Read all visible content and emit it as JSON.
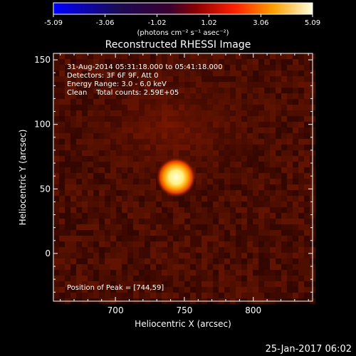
{
  "colorbar": {
    "ticks": [
      "-5.09",
      "-3.06",
      "-1.02",
      "1.02",
      "3.06",
      "5.09"
    ],
    "min": -5.09,
    "max": 5.09,
    "units_label": "(photons cm⁻² s⁻¹ asec⁻²)"
  },
  "chart_data": {
    "type": "heatmap",
    "title": "Reconstructed RHESSI Image",
    "xlabel": "Heliocentric X (arcsec)",
    "ylabel": "Heliocentric Y (arcsec)",
    "xlim": [
      655,
      843
    ],
    "ylim": [
      -37,
      155
    ],
    "xticks": [
      "700",
      "750",
      "800"
    ],
    "yticks": [
      "0",
      "50",
      "100",
      "150"
    ],
    "xtick_values": [
      700,
      750,
      800
    ],
    "ytick_values": [
      0,
      50,
      100,
      150
    ],
    "peak": {
      "x": 744,
      "y": 59
    },
    "info_lines": [
      "31-Aug-2014 05:31:18.000 to 05:41:18.000",
      "Detectors: 3F 6F 9F, Att 0",
      "Energy Range: 3.0 - 6.0 keV",
      "Clean    Total counts: 2.59E+05"
    ],
    "peak_label": "Position of Peak = [744,59]"
  },
  "footer_date": "25-Jan-2017 06:02"
}
